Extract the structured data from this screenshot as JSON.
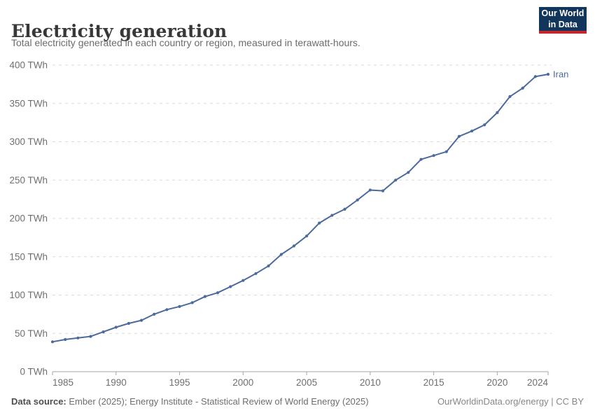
{
  "header": {
    "title": "Electricity generation",
    "subtitle": "Total electricity generated in each country or region, measured in terawatt-hours.",
    "logo": {
      "line1": "Our World",
      "line2": "in Data",
      "bg_color": "#12355c",
      "accent_color": "#c5262e"
    }
  },
  "chart_data": {
    "type": "line",
    "title": "Electricity generation",
    "xlabel": "",
    "ylabel": "TWh",
    "xlim": [
      1985,
      2024
    ],
    "ylim": [
      0,
      400
    ],
    "grid": "horizontal-dashed",
    "legend_position": "end-of-line-label",
    "x_ticks": [
      1985,
      1990,
      1995,
      2000,
      2005,
      2010,
      2015,
      2020,
      2024
    ],
    "y_ticks": [
      0,
      50,
      100,
      150,
      200,
      250,
      300,
      350,
      400
    ],
    "y_tick_suffix": " TWh",
    "x": [
      1985,
      1986,
      1987,
      1988,
      1989,
      1990,
      1991,
      1992,
      1993,
      1994,
      1995,
      1996,
      1997,
      1998,
      1999,
      2000,
      2001,
      2002,
      2003,
      2004,
      2005,
      2006,
      2007,
      2008,
      2009,
      2010,
      2011,
      2012,
      2013,
      2014,
      2015,
      2016,
      2017,
      2018,
      2019,
      2020,
      2021,
      2022,
      2023,
      2024
    ],
    "series": [
      {
        "name": "Iran",
        "color": "#4c6a9c",
        "values": [
          39,
          42,
          44,
          46,
          52,
          58,
          63,
          67,
          75,
          81,
          85,
          90,
          98,
          103,
          111,
          119,
          128,
          138,
          153,
          164,
          177,
          194,
          204,
          212,
          224,
          237,
          236,
          250,
          260,
          277,
          282,
          287,
          307,
          314,
          322,
          338,
          359,
          370,
          385,
          388
        ]
      }
    ],
    "end_label": "Iran"
  },
  "colors": {
    "line": "#4c6a9c",
    "grid": "#dadada",
    "axis": "#a5a5a5",
    "tick_text": "#6f6f6f"
  },
  "footer": {
    "source_label": "Data source:",
    "source_rest": " Ember (2025); Energy Institute - Statistical Review of World Energy (2025)",
    "credit": "OurWorldinData.org/energy | CC BY"
  }
}
